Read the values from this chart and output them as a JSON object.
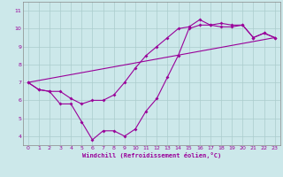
{
  "xlabel": "Windchill (Refroidissement éolien,°C)",
  "background_color": "#cce8ea",
  "grid_color": "#aacccc",
  "line_color": "#990099",
  "xlim": [
    -0.5,
    23.5
  ],
  "ylim": [
    3.5,
    11.5
  ],
  "xticks": [
    0,
    1,
    2,
    3,
    4,
    5,
    6,
    7,
    8,
    9,
    10,
    11,
    12,
    13,
    14,
    15,
    16,
    17,
    18,
    19,
    20,
    21,
    22,
    23
  ],
  "yticks": [
    4,
    5,
    6,
    7,
    8,
    9,
    10,
    11
  ],
  "line1_x": [
    0,
    1,
    2,
    3,
    4,
    5,
    6,
    7,
    8,
    9,
    10,
    11,
    12,
    13,
    14,
    15,
    16,
    17,
    18,
    19,
    20,
    21,
    22,
    23
  ],
  "line1_y": [
    7.0,
    6.6,
    6.5,
    5.8,
    5.8,
    4.8,
    3.8,
    4.3,
    4.3,
    4.0,
    4.4,
    5.4,
    6.1,
    7.3,
    8.5,
    10.0,
    10.2,
    10.2,
    10.3,
    10.2,
    10.2,
    9.5,
    9.75,
    9.5
  ],
  "line2_x": [
    0,
    1,
    2,
    3,
    4,
    5,
    6,
    7,
    8,
    9,
    10,
    11,
    12,
    13,
    14,
    15,
    16,
    17,
    18,
    19,
    20,
    21,
    22,
    23
  ],
  "line2_y": [
    7.0,
    6.6,
    6.5,
    6.5,
    6.1,
    5.8,
    6.0,
    6.0,
    6.3,
    7.0,
    7.8,
    8.5,
    9.0,
    9.5,
    10.0,
    10.1,
    10.5,
    10.2,
    10.1,
    10.1,
    10.2,
    9.5,
    9.75,
    9.5
  ],
  "line3_x": [
    0,
    23
  ],
  "line3_y": [
    7.0,
    9.5
  ],
  "marker": "D",
  "markersize": 2,
  "linewidth": 0.8
}
